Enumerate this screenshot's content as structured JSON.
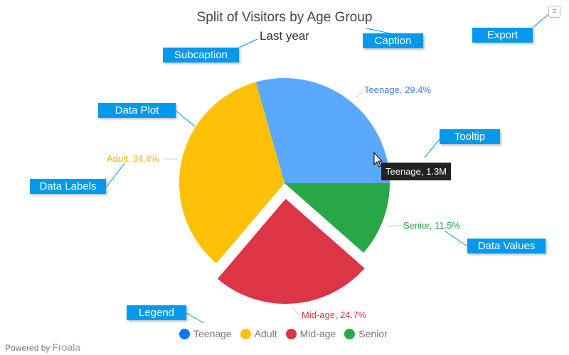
{
  "chart_data": {
    "type": "pie",
    "title": "Split of Visitors by Age Group",
    "subtitle": "Last year",
    "slices": [
      {
        "label": "Teenage",
        "percent": 29.4,
        "color": "#5ba8ff",
        "legend_color": "#0075ff",
        "label_color": "#3b7de9",
        "display": "Teenage, 29.4%"
      },
      {
        "label": "Adult",
        "percent": 34.4,
        "color": "#ffc107",
        "legend_color": "#ffc107",
        "label_color": "#f5b400",
        "display": "Adult, 34.4%"
      },
      {
        "label": "Mid-age",
        "percent": 24.7,
        "color": "#dc3545",
        "legend_color": "#dc3545",
        "label_color": "#dc3545",
        "display": "Mid-age, 24.7%",
        "sliced": true
      },
      {
        "label": "Senior",
        "percent": 11.5,
        "color": "#28a745",
        "legend_color": "#28a745",
        "label_color": "#28a745",
        "display": "Senior, 11.5%"
      }
    ],
    "legend_position": "bottom"
  },
  "tooltip": "Teenage, 1.3M",
  "annotations": {
    "caption": "Caption",
    "subcaption": "Subcaption",
    "export": "Export",
    "data_plot": "Data Plot",
    "tooltip": "Tooltip",
    "data_labels": "Data Labels",
    "data_values": "Data Values",
    "legend": "Legend"
  },
  "footer": {
    "powered_by": "Powered by",
    "brand": "Froala"
  }
}
